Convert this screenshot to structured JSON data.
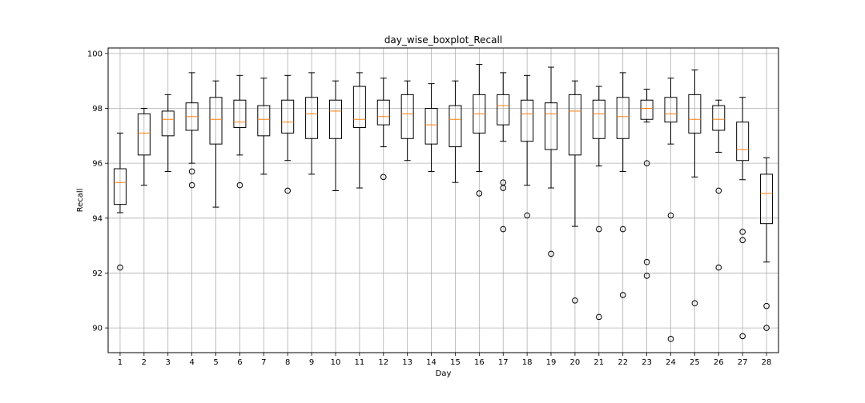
{
  "chart_data": {
    "type": "boxplot",
    "title": "day_wise_boxplot_Recall",
    "xlabel": "Day",
    "ylabel": "Recall",
    "ylim": [
      89.1,
      100.2
    ],
    "yticks": [
      90,
      92,
      94,
      96,
      98,
      100
    ],
    "grid": true,
    "colors": {
      "box": "#000000",
      "median": "#ff7f0e",
      "grid": "#b0b0b0"
    },
    "categories": [
      "1",
      "2",
      "3",
      "4",
      "5",
      "6",
      "7",
      "8",
      "9",
      "10",
      "11",
      "12",
      "13",
      "14",
      "15",
      "16",
      "17",
      "18",
      "19",
      "20",
      "21",
      "22",
      "23",
      "24",
      "25",
      "26",
      "27",
      "28"
    ],
    "boxes": [
      {
        "whislo": 94.2,
        "q1": 94.5,
        "med": 95.3,
        "q3": 95.8,
        "whishi": 97.1,
        "fliers": [
          92.2
        ]
      },
      {
        "whislo": 95.2,
        "q1": 96.3,
        "med": 97.1,
        "q3": 97.8,
        "whishi": 98.0,
        "fliers": []
      },
      {
        "whislo": 95.7,
        "q1": 97.0,
        "med": 97.6,
        "q3": 97.9,
        "whishi": 98.5,
        "fliers": []
      },
      {
        "whislo": 96.0,
        "q1": 97.2,
        "med": 97.7,
        "q3": 98.2,
        "whishi": 99.3,
        "fliers": [
          95.7,
          95.2
        ]
      },
      {
        "whislo": 94.4,
        "q1": 96.7,
        "med": 97.6,
        "q3": 98.4,
        "whishi": 99.0,
        "fliers": []
      },
      {
        "whislo": 96.3,
        "q1": 97.3,
        "med": 97.5,
        "q3": 98.3,
        "whishi": 99.2,
        "fliers": [
          95.2
        ]
      },
      {
        "whislo": 95.6,
        "q1": 97.0,
        "med": 97.6,
        "q3": 98.1,
        "whishi": 99.1,
        "fliers": []
      },
      {
        "whislo": 96.1,
        "q1": 97.1,
        "med": 97.5,
        "q3": 98.3,
        "whishi": 99.2,
        "fliers": [
          95.0
        ]
      },
      {
        "whislo": 95.6,
        "q1": 96.9,
        "med": 97.8,
        "q3": 98.4,
        "whishi": 99.3,
        "fliers": []
      },
      {
        "whislo": 95.0,
        "q1": 96.9,
        "med": 97.9,
        "q3": 98.3,
        "whishi": 99.0,
        "fliers": []
      },
      {
        "whislo": 95.1,
        "q1": 97.3,
        "med": 97.6,
        "q3": 98.8,
        "whishi": 99.3,
        "fliers": []
      },
      {
        "whislo": 96.6,
        "q1": 97.4,
        "med": 97.7,
        "q3": 98.3,
        "whishi": 99.1,
        "fliers": [
          95.5
        ]
      },
      {
        "whislo": 96.1,
        "q1": 96.9,
        "med": 97.8,
        "q3": 98.5,
        "whishi": 99.0,
        "fliers": []
      },
      {
        "whislo": 95.7,
        "q1": 96.7,
        "med": 97.4,
        "q3": 98.0,
        "whishi": 98.9,
        "fliers": []
      },
      {
        "whislo": 95.3,
        "q1": 96.6,
        "med": 97.6,
        "q3": 98.1,
        "whishi": 99.0,
        "fliers": []
      },
      {
        "whislo": 95.7,
        "q1": 97.1,
        "med": 97.8,
        "q3": 98.5,
        "whishi": 99.6,
        "fliers": [
          94.9
        ]
      },
      {
        "whislo": 96.8,
        "q1": 97.4,
        "med": 98.1,
        "q3": 98.5,
        "whishi": 99.3,
        "fliers": [
          95.3,
          95.1,
          93.6
        ]
      },
      {
        "whislo": 95.2,
        "q1": 96.8,
        "med": 97.8,
        "q3": 98.3,
        "whishi": 99.2,
        "fliers": [
          94.1
        ]
      },
      {
        "whislo": 95.1,
        "q1": 96.5,
        "med": 97.8,
        "q3": 98.2,
        "whishi": 99.5,
        "fliers": [
          92.7
        ]
      },
      {
        "whislo": 93.7,
        "q1": 96.3,
        "med": 97.9,
        "q3": 98.5,
        "whishi": 99.0,
        "fliers": [
          91.0
        ]
      },
      {
        "whislo": 95.9,
        "q1": 96.9,
        "med": 97.8,
        "q3": 98.3,
        "whishi": 98.8,
        "fliers": [
          93.6,
          90.4
        ]
      },
      {
        "whislo": 95.7,
        "q1": 96.9,
        "med": 97.7,
        "q3": 98.4,
        "whishi": 99.3,
        "fliers": [
          93.6,
          91.2
        ]
      },
      {
        "whislo": 97.5,
        "q1": 97.6,
        "med": 98.0,
        "q3": 98.3,
        "whishi": 98.7,
        "fliers": [
          96.0,
          92.4,
          91.9
        ]
      },
      {
        "whislo": 96.7,
        "q1": 97.5,
        "med": 97.8,
        "q3": 98.4,
        "whishi": 99.1,
        "fliers": [
          94.1,
          89.6
        ]
      },
      {
        "whislo": 95.5,
        "q1": 97.1,
        "med": 97.6,
        "q3": 98.5,
        "whishi": 99.4,
        "fliers": [
          90.9
        ]
      },
      {
        "whislo": 96.4,
        "q1": 97.2,
        "med": 97.6,
        "q3": 98.1,
        "whishi": 98.3,
        "fliers": [
          95.0,
          92.2
        ]
      },
      {
        "whislo": 95.4,
        "q1": 96.1,
        "med": 96.5,
        "q3": 97.5,
        "whishi": 98.4,
        "fliers": [
          93.5,
          93.2,
          89.7
        ]
      },
      {
        "whislo": 92.4,
        "q1": 93.8,
        "med": 94.9,
        "q3": 95.6,
        "whishi": 96.2,
        "fliers": [
          90.8,
          90.0
        ]
      }
    ]
  }
}
